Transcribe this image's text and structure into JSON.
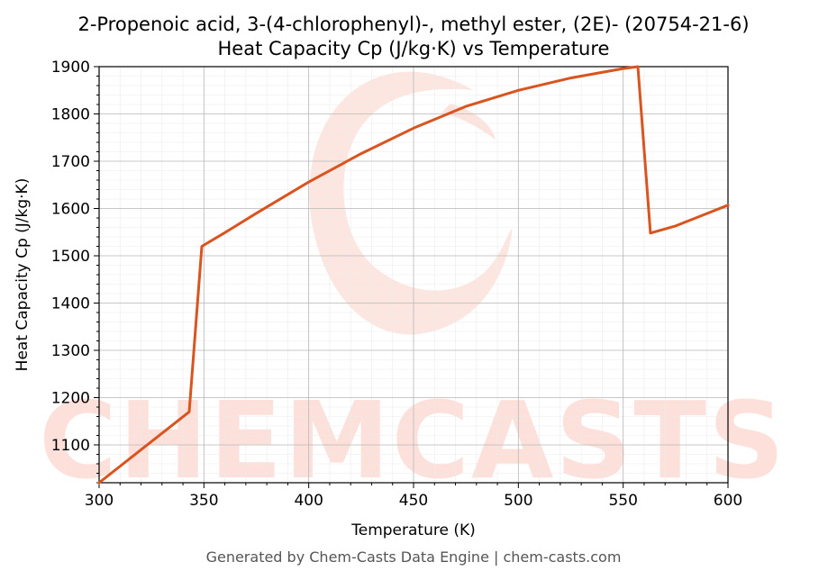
{
  "chart_data": {
    "type": "line",
    "title": "2-Propenoic acid, 3-(4-chlorophenyl)-, methyl ester, (2E)- (20754-21-6)",
    "subtitle": "Heat Capacity Cp (J/kg·K) vs Temperature",
    "xlabel": "Temperature (K)",
    "ylabel": "Heat Capacity Cp (J/kg·K)",
    "xlim": [
      300,
      600
    ],
    "ylim": [
      1020,
      1900
    ],
    "xticks": [
      300,
      350,
      400,
      450,
      500,
      550,
      600
    ],
    "yticks": [
      1100,
      1200,
      1300,
      1400,
      1500,
      1600,
      1700,
      1800,
      1900
    ],
    "grid": true,
    "series_color": "#d9541e",
    "series": [
      {
        "x": [
          300,
          343,
          349,
          360,
          375,
          400,
          425,
          450,
          475,
          500,
          525,
          550,
          557,
          563,
          575,
          600
        ],
        "y": [
          1020,
          1170,
          1520,
          1549,
          1590,
          1656,
          1716,
          1770,
          1816,
          1850,
          1876,
          1896,
          1900,
          1548,
          1563,
          1607
        ]
      }
    ]
  },
  "watermark": "CHEMCASTS",
  "footer": "Generated by Chem-Casts Data Engine | chem-casts.com"
}
